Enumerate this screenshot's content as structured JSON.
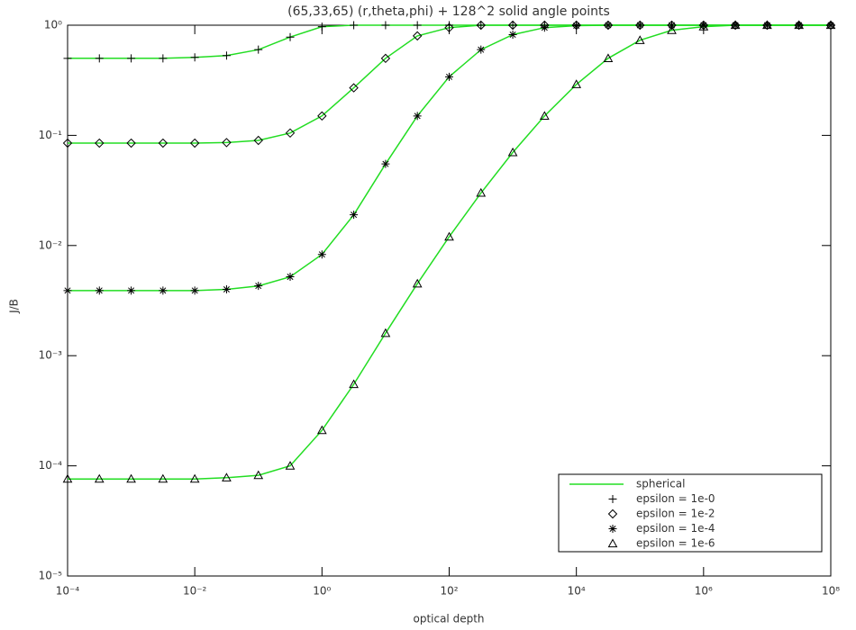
{
  "chart_data": {
    "type": "line",
    "title": "(65,33,65) (r,theta,phi) + 128^2 solid angle points",
    "xlabel": "optical depth",
    "ylabel": "J/B",
    "xlog": true,
    "ylog": true,
    "xlim": [
      0.0001,
      100000000
    ],
    "ylim": [
      1e-05,
      1
    ],
    "xticks": [
      {
        "value": 0.0001,
        "label": "10⁻⁴"
      },
      {
        "value": 0.01,
        "label": "10⁻²"
      },
      {
        "value": 1,
        "label": "10⁰"
      },
      {
        "value": 100,
        "label": "10²"
      },
      {
        "value": 10000,
        "label": "10⁴"
      },
      {
        "value": 1000000,
        "label": "10⁶"
      },
      {
        "value": 100000000,
        "label": "10⁸"
      }
    ],
    "yticks": [
      {
        "value": 1e-05,
        "label": "10⁻⁵"
      },
      {
        "value": 0.0001,
        "label": "10⁻⁴"
      },
      {
        "value": 0.001,
        "label": "10⁻³"
      },
      {
        "value": 0.01,
        "label": "10⁻²"
      },
      {
        "value": 0.1,
        "label": "10⁻¹"
      },
      {
        "value": 1,
        "label": "10⁰"
      }
    ],
    "curve": {
      "name": "spherical",
      "color": "#22dd22"
    },
    "legend": "lower right",
    "x": [
      0.0001,
      0.000316,
      0.001,
      0.00316,
      0.01,
      0.0316,
      0.1,
      0.316,
      1,
      3.16,
      10,
      31.6,
      100,
      316,
      1000,
      3160,
      10000,
      31600,
      100000,
      316000,
      1000000,
      3160000,
      10000000,
      31600000,
      100000000
    ],
    "series": [
      {
        "name": "epsilon = 1e-0",
        "marker": "plus",
        "color": "#000000",
        "values": [
          0.5,
          0.5,
          0.5,
          0.5,
          0.51,
          0.53,
          0.6,
          0.78,
          0.97,
          1,
          1,
          1,
          1,
          1,
          1,
          1,
          1,
          1,
          1,
          1,
          1,
          1,
          1,
          1,
          1
        ]
      },
      {
        "name": "epsilon = 1e-2",
        "marker": "diamond",
        "color": "#000000",
        "values": [
          0.085,
          0.085,
          0.085,
          0.085,
          0.085,
          0.086,
          0.09,
          0.105,
          0.15,
          0.27,
          0.5,
          0.8,
          0.95,
          1,
          1,
          1,
          1,
          1,
          1,
          1,
          1,
          1,
          1,
          1,
          1
        ]
      },
      {
        "name": "epsilon = 1e-4",
        "marker": "asterisk",
        "color": "#000000",
        "values": [
          0.0039,
          0.0039,
          0.0039,
          0.0039,
          0.0039,
          0.004,
          0.0043,
          0.0052,
          0.0083,
          0.019,
          0.055,
          0.15,
          0.34,
          0.6,
          0.82,
          0.95,
          0.99,
          1,
          1,
          1,
          1,
          1,
          1,
          1,
          1
        ]
      },
      {
        "name": "epsilon = 1e-6",
        "marker": "triangle",
        "color": "#000000",
        "values": [
          7.6e-05,
          7.6e-05,
          7.6e-05,
          7.6e-05,
          7.6e-05,
          7.8e-05,
          8.2e-05,
          0.0001,
          0.00021,
          0.00055,
          0.0016,
          0.0045,
          0.012,
          0.03,
          0.07,
          0.15,
          0.29,
          0.5,
          0.73,
          0.9,
          0.97,
          1,
          1,
          1,
          1
        ]
      }
    ]
  }
}
